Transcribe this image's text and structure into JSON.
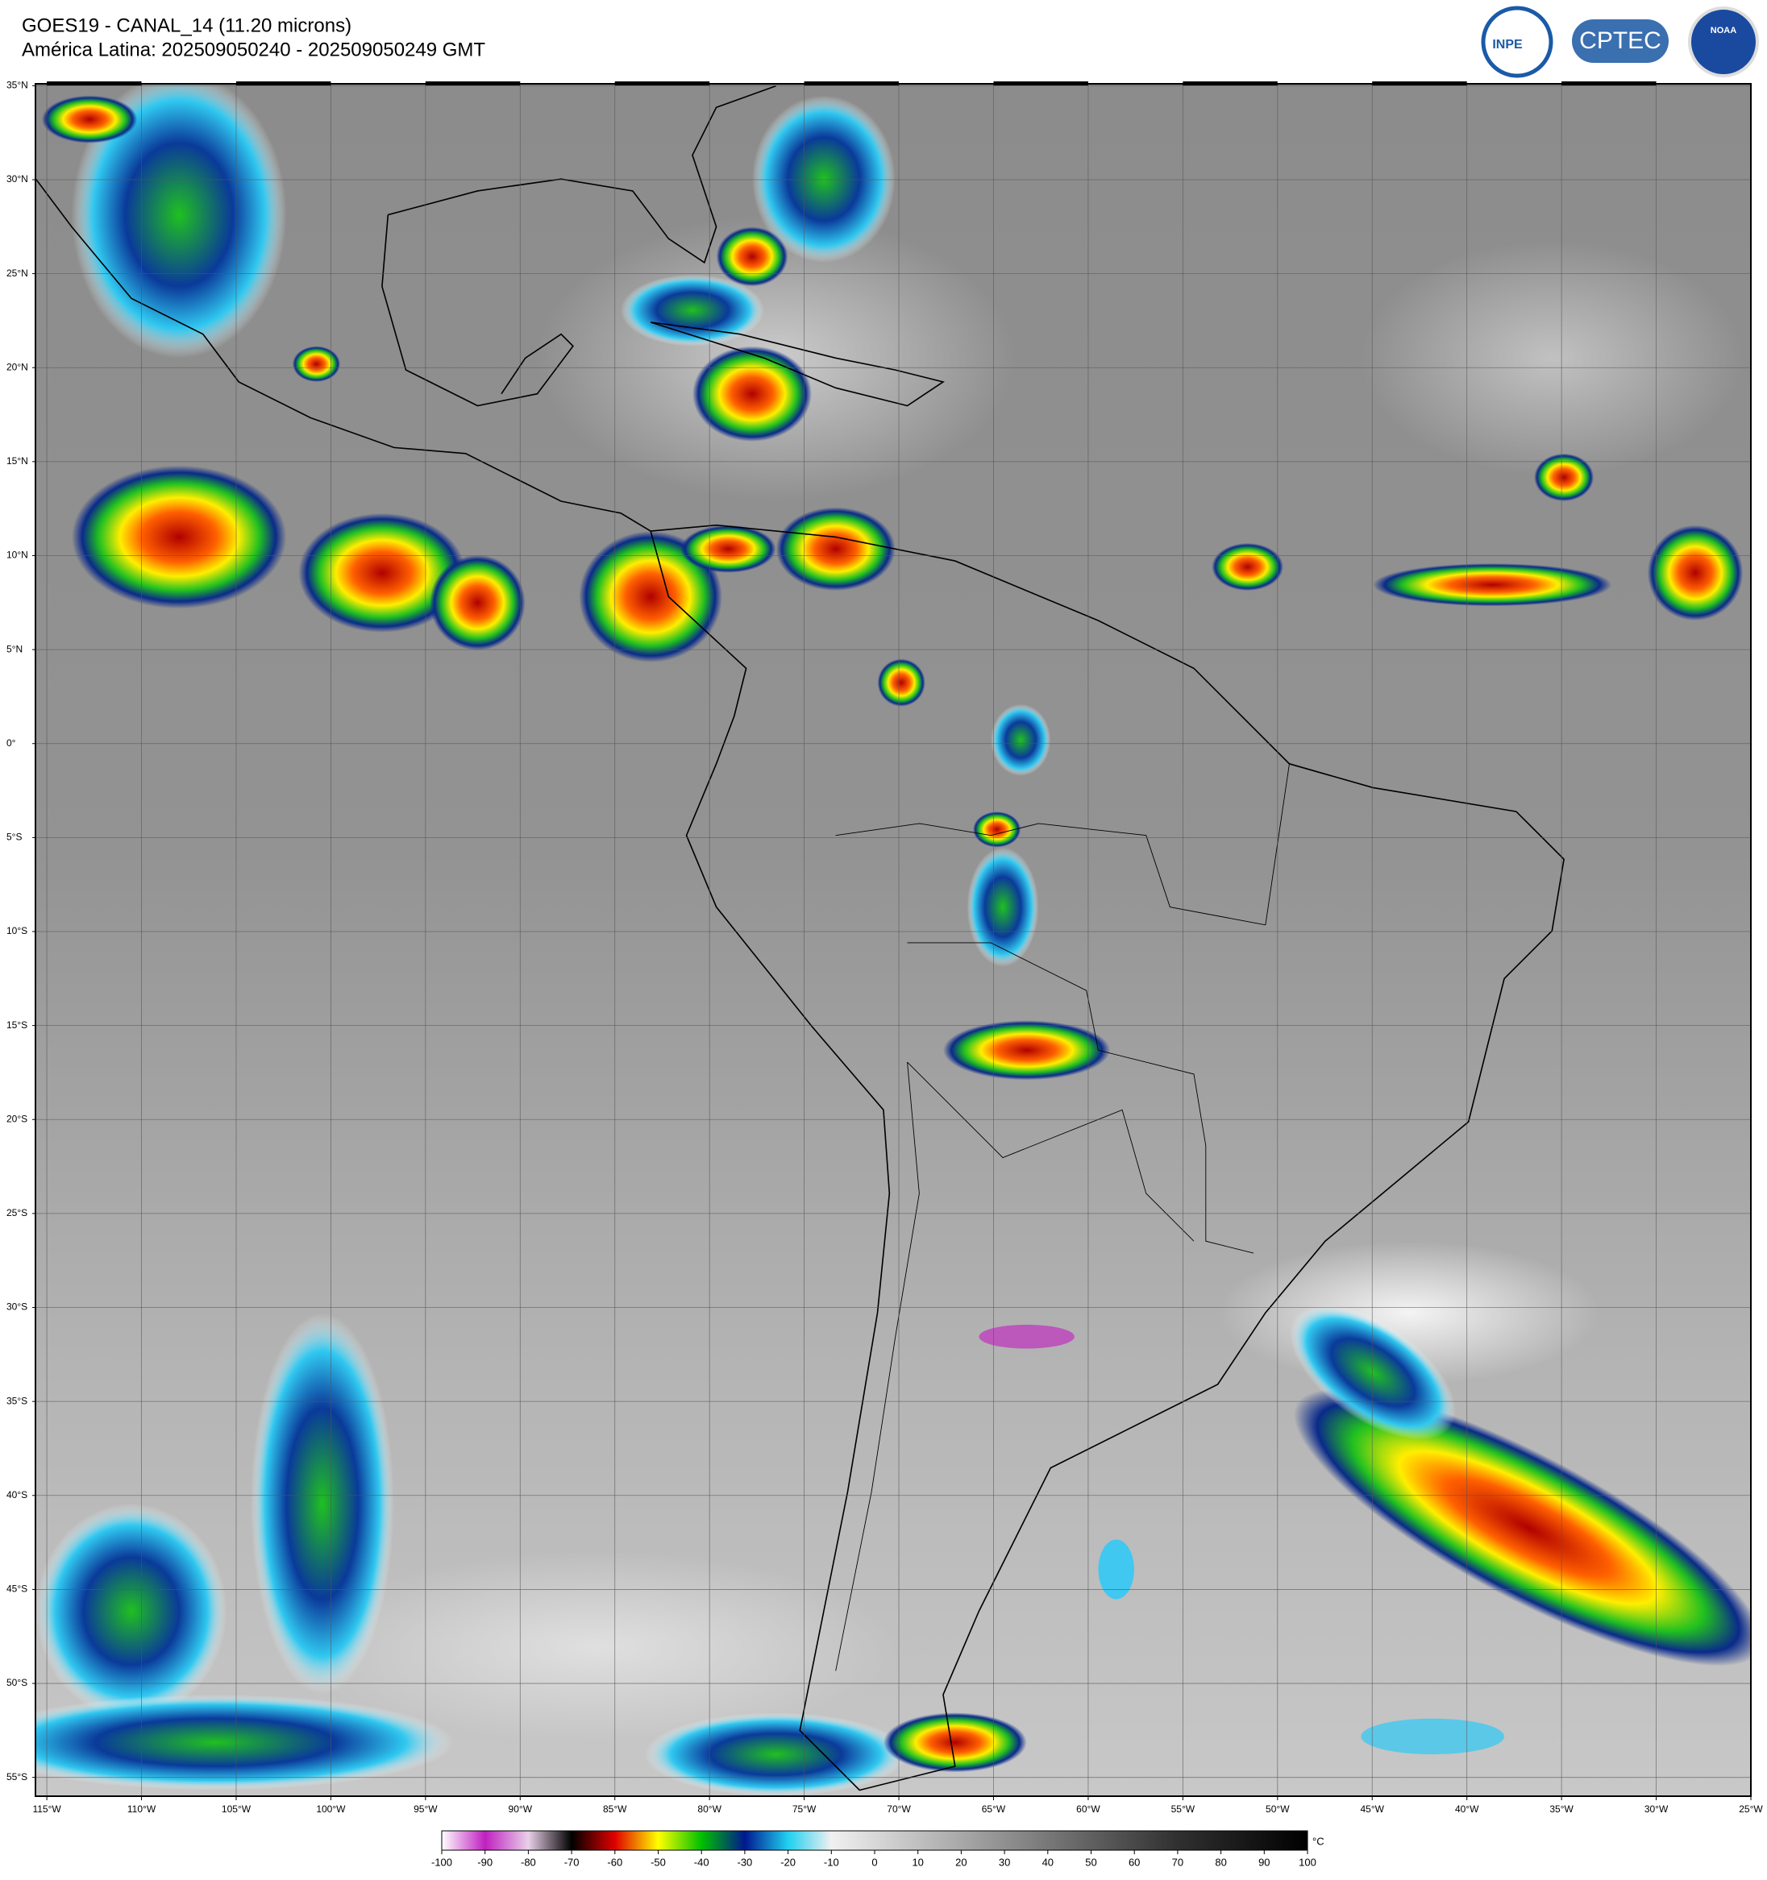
{
  "header": {
    "title": "GOES19 - CANAL_14 (11.20 microns)",
    "subtitle": "América Latina: 202509050240 - 202509050249 GMT"
  },
  "logos": [
    "INPE",
    "CPTEC",
    "NOAA"
  ],
  "map": {
    "lon_lim": [
      -115.6,
      -25
    ],
    "lat_lim": [
      35.1,
      -56
    ],
    "lat_ticks": [
      {
        "value": 35,
        "label": "35°N"
      },
      {
        "value": 30,
        "label": "30°N"
      },
      {
        "value": 25,
        "label": "25°N"
      },
      {
        "value": 20,
        "label": "20°N"
      },
      {
        "value": 15,
        "label": "15°N"
      },
      {
        "value": 10,
        "label": "10°N"
      },
      {
        "value": 5,
        "label": "5°N"
      },
      {
        "value": 0,
        "label": "0°"
      },
      {
        "value": -5,
        "label": "5°S"
      },
      {
        "value": -10,
        "label": "10°S"
      },
      {
        "value": -15,
        "label": "15°S"
      },
      {
        "value": -20,
        "label": "20°S"
      },
      {
        "value": -25,
        "label": "25°S"
      },
      {
        "value": -30,
        "label": "30°S"
      },
      {
        "value": -35,
        "label": "35°S"
      },
      {
        "value": -40,
        "label": "40°S"
      },
      {
        "value": -45,
        "label": "45°S"
      },
      {
        "value": -50,
        "label": "50°S"
      },
      {
        "value": -55,
        "label": "55°S"
      }
    ],
    "lon_ticks": [
      {
        "value": -115,
        "label": "115°W"
      },
      {
        "value": -110,
        "label": "110°W"
      },
      {
        "value": -105,
        "label": "105°W"
      },
      {
        "value": -100,
        "label": "100°W"
      },
      {
        "value": -95,
        "label": "95°W"
      },
      {
        "value": -90,
        "label": "90°W"
      },
      {
        "value": -85,
        "label": "85°W"
      },
      {
        "value": -80,
        "label": "80°W"
      },
      {
        "value": -75,
        "label": "75°W"
      },
      {
        "value": -70,
        "label": "70°W"
      },
      {
        "value": -65,
        "label": "65°W"
      },
      {
        "value": -60,
        "label": "60°W"
      },
      {
        "value": -55,
        "label": "55°W"
      },
      {
        "value": -50,
        "label": "50°W"
      },
      {
        "value": -45,
        "label": "45°W"
      },
      {
        "value": -40,
        "label": "40°W"
      },
      {
        "value": -35,
        "label": "35°W"
      },
      {
        "value": -30,
        "label": "30°W"
      },
      {
        "value": -25,
        "label": "25°W"
      }
    ],
    "grid": true
  },
  "colorbar": {
    "lim": [
      -100,
      100
    ],
    "ticks": [
      -100,
      -90,
      -80,
      -70,
      -60,
      -50,
      -40,
      -30,
      -20,
      -10,
      0,
      10,
      20,
      30,
      40,
      50,
      60,
      70,
      80,
      90,
      100
    ],
    "unit": "°C",
    "colors": [
      "#ffffff",
      "#c020c0",
      "#e8d0e8",
      "#000000",
      "#e00000",
      "#ffff00",
      "#00c000",
      "#001890",
      "#20d0f0",
      "#f0f0f0",
      "#d8d8d8",
      "#c0c0c0",
      "#a8a8a8",
      "#909090",
      "#787878",
      "#606060",
      "#484848",
      "#303030",
      "#202020",
      "#101010",
      "#000000"
    ]
  }
}
